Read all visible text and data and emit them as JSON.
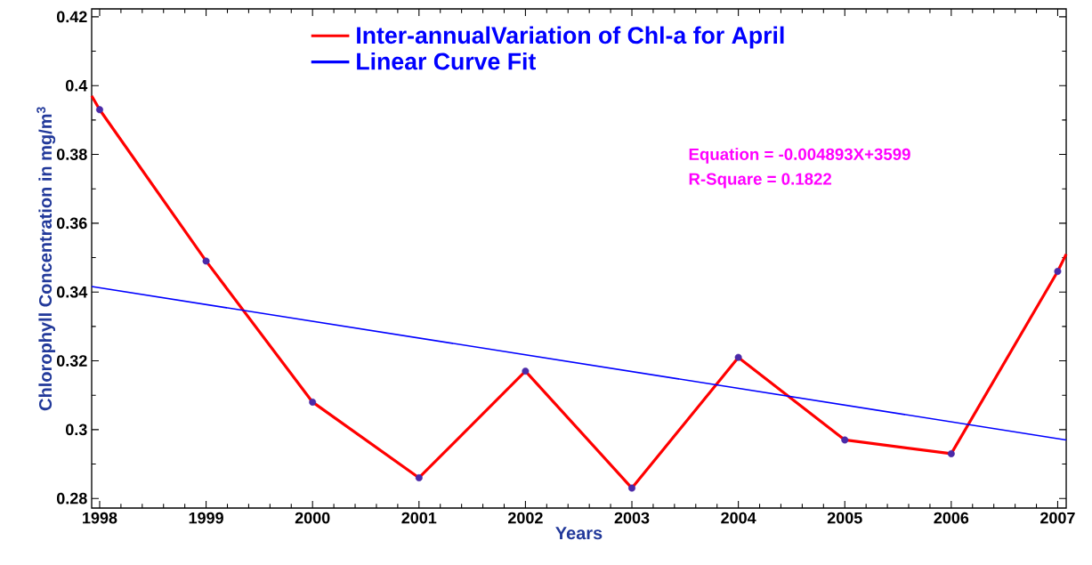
{
  "chart_data": {
    "type": "line",
    "xlabel": "Years",
    "ylabel": "Chlorophyll Concentration in mg/m$^{3}$",
    "xlim": [
      1997.925,
      2007.08
    ],
    "ylim": [
      0.2772,
      0.4223
    ],
    "xticks": [
      1998,
      1999,
      2000,
      2001,
      2002,
      2003,
      2004,
      2005,
      2006,
      2007
    ],
    "yticks": [
      0.28,
      0.3,
      0.32,
      0.34,
      0.36,
      0.38,
      0.4,
      0.42
    ],
    "legend": "top",
    "grid": false,
    "series": [
      {
        "type": "scatter",
        "color": "#4b2aa8",
        "marker": "circle",
        "x": [
          1998,
          1999,
          2000,
          2001,
          2002,
          2003,
          2004,
          2005,
          2006,
          2007
        ],
        "values": [
          0.393,
          0.349,
          0.308,
          0.286,
          0.317,
          0.283,
          0.321,
          0.297,
          0.293,
          0.346
        ]
      },
      {
        "name": "Inter-annualVariation of Chl-a for April",
        "color": "#ff0000",
        "x": [
          1997.925,
          1998,
          1999,
          2000,
          2001,
          2002,
          2003,
          2004,
          2005,
          2006,
          2007,
          2007.08
        ],
        "values": [
          0.397,
          0.393,
          0.349,
          0.308,
          0.286,
          0.317,
          0.283,
          0.321,
          0.297,
          0.293,
          0.346,
          0.351
        ]
      },
      {
        "name": "Linear Curve Fit",
        "color": "#0000ff",
        "x": [
          1997.925,
          2007.08
        ],
        "values": [
          0.3416,
          0.297
        ]
      }
    ],
    "annotations": [
      "Equation = -0.004893X+3599",
      "R-Square = 0.1822"
    ]
  }
}
